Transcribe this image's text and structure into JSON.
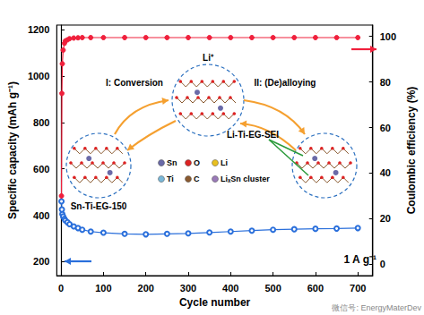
{
  "chart_data": {
    "type": "line",
    "x_label": "Cycle number",
    "y_label": "Specific capacity (mAh g⁻¹)",
    "y2_label": "Coulombic efficiency (%)",
    "x": [
      1,
      2,
      3,
      5,
      8,
      10,
      15,
      20,
      30,
      40,
      50,
      70,
      100,
      150,
      200,
      250,
      300,
      350,
      400,
      450,
      500,
      550,
      600,
      650,
      700
    ],
    "series": [
      {
        "color": "#2a6fdb",
        "marker": "open_circle",
        "values": [
          460,
          425,
          405,
          395,
          385,
          378,
          370,
          362,
          352,
          345,
          338,
          330,
          325,
          320,
          318,
          320,
          322,
          326,
          330,
          334,
          338,
          340,
          342,
          343,
          345
        ]
      },
      {
        "color": "#f0203c",
        "marker": "circle",
        "axis": "y2",
        "values": [
          30,
          75,
          88,
          94,
          97,
          98,
          98.5,
          99,
          99.3,
          99.4,
          99.5,
          99.5,
          99.5,
          99.5,
          99.5,
          99.5,
          99.5,
          99.5,
          99.5,
          99.5,
          99.5,
          99.5,
          99.5,
          99.5,
          99.5
        ]
      }
    ],
    "xlim": [
      -10,
      735
    ],
    "xticks": [
      0,
      100,
      200,
      300,
      400,
      500,
      600,
      700
    ],
    "ylim": [
      140,
      1220
    ],
    "yticks": [
      200,
      400,
      600,
      800,
      1000,
      1200
    ],
    "y2lim": [
      -5,
      105
    ],
    "y2ticks": [
      0,
      20,
      40,
      60,
      80,
      100
    ],
    "grid": false,
    "annotations": [
      "1 A g⁻¹",
      "Sn-Ti-EG-150",
      "I: Conversion",
      "II: (De)alloying",
      "Li-Ti-EG-SEI",
      "Li⁺",
      "Sn",
      "O",
      "Li",
      "Ti",
      "C",
      "LiₓSn cluster",
      "微信号: EnergyMaterDev"
    ]
  }
}
